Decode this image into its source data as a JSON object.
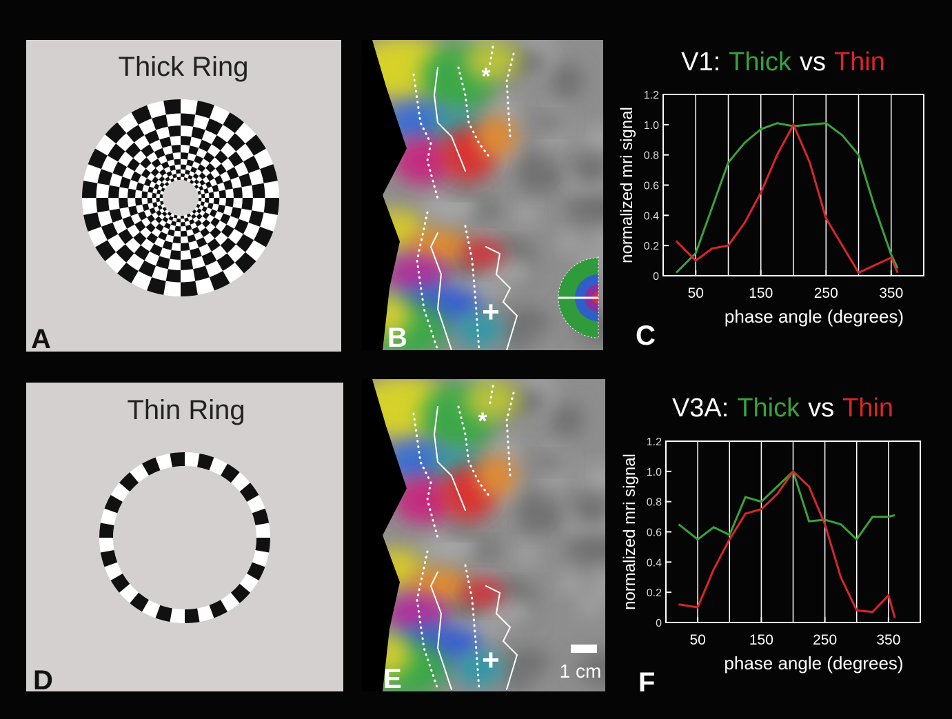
{
  "panel_a": {
    "title": "Thick Ring",
    "label": "A"
  },
  "panel_b": {
    "label": "B",
    "markers": [
      "*",
      "+"
    ]
  },
  "panel_d": {
    "title": "Thin Ring",
    "label": "D"
  },
  "panel_e": {
    "label": "E",
    "markers": [
      "*",
      "+"
    ],
    "scale": "1 cm"
  },
  "chart_data": [
    {
      "type": "line",
      "panel_label": "C",
      "title_parts": [
        "V1:",
        "Thick",
        "vs",
        "Thin"
      ],
      "x_label": "phase angle (degrees)",
      "y_label": "normalized mri signal",
      "x": [
        20,
        50,
        75,
        100,
        125,
        150,
        175,
        200,
        225,
        250,
        275,
        300,
        325,
        350,
        360
      ],
      "xlim": [
        0,
        400
      ],
      "xticks": [
        50,
        150,
        250,
        350
      ],
      "xgrid": [
        50,
        100,
        150,
        200,
        250,
        300,
        350
      ],
      "ylim": [
        0,
        1.2
      ],
      "yticks": [
        0,
        0.2,
        0.4,
        0.6,
        0.8,
        {
          "value": 1,
          "label": "1.0"
        },
        1.2
      ],
      "series": [
        {
          "name": "Thick",
          "color": "#3aa23a",
          "values": [
            0.02,
            0.15,
            0.45,
            0.75,
            0.88,
            0.97,
            1.01,
            0.99,
            1.0,
            1.01,
            0.93,
            0.8,
            0.45,
            0.14,
            0.05
          ]
        },
        {
          "name": "Thin",
          "color": "#d8262a",
          "values": [
            0.23,
            0.1,
            0.18,
            0.2,
            0.35,
            0.55,
            0.8,
            1.0,
            0.75,
            0.38,
            0.2,
            0.02,
            0.07,
            0.12,
            0.02
          ]
        }
      ]
    },
    {
      "type": "line",
      "panel_label": "F",
      "title_parts": [
        "V3A:",
        "Thick",
        "vs",
        "Thin"
      ],
      "x_label": "phase angle (degrees)",
      "y_label": "normalized mri signal",
      "x": [
        20,
        50,
        75,
        100,
        125,
        150,
        175,
        200,
        225,
        250,
        275,
        300,
        325,
        350,
        360
      ],
      "xlim": [
        0,
        400
      ],
      "xticks": [
        50,
        150,
        250,
        350
      ],
      "xgrid": [
        50,
        100,
        150,
        200,
        250,
        300,
        350
      ],
      "ylim": [
        0,
        1.2
      ],
      "yticks": [
        0,
        0.2,
        0.4,
        0.6,
        0.8,
        {
          "value": 1,
          "label": "1.0"
        },
        1.2
      ],
      "series": [
        {
          "name": "Thick",
          "color": "#3aa23a",
          "values": [
            0.65,
            0.55,
            0.63,
            0.58,
            0.83,
            0.8,
            0.9,
            1.0,
            0.67,
            0.68,
            0.65,
            0.55,
            0.7,
            0.7,
            0.71
          ]
        },
        {
          "name": "Thin",
          "color": "#d8262a",
          "values": [
            0.12,
            0.1,
            0.35,
            0.55,
            0.72,
            0.75,
            0.85,
            1.0,
            0.9,
            0.65,
            0.3,
            0.08,
            0.07,
            0.18,
            0.03
          ]
        }
      ]
    }
  ]
}
